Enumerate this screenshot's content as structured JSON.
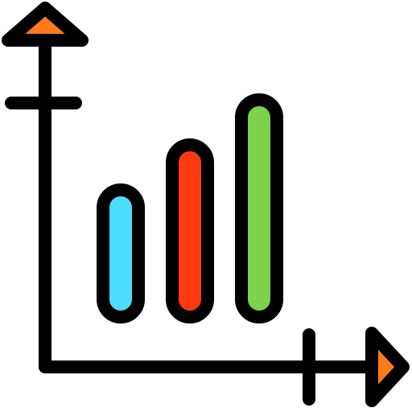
{
  "icon": {
    "semantic_name": "bar-chart-growth-icon",
    "colors": {
      "outline": "#000000",
      "arrow_fill": "#FF7A1A",
      "bar_1": "#4DDDFF",
      "bar_2": "#FF3A12",
      "bar_3": "#7ED14B",
      "background": "#FFFFFF"
    },
    "bars": [
      {
        "name": "bar-1",
        "relative_height": 0.55
      },
      {
        "name": "bar-2",
        "relative_height": 0.78
      },
      {
        "name": "bar-3",
        "relative_height": 1.0
      }
    ]
  }
}
